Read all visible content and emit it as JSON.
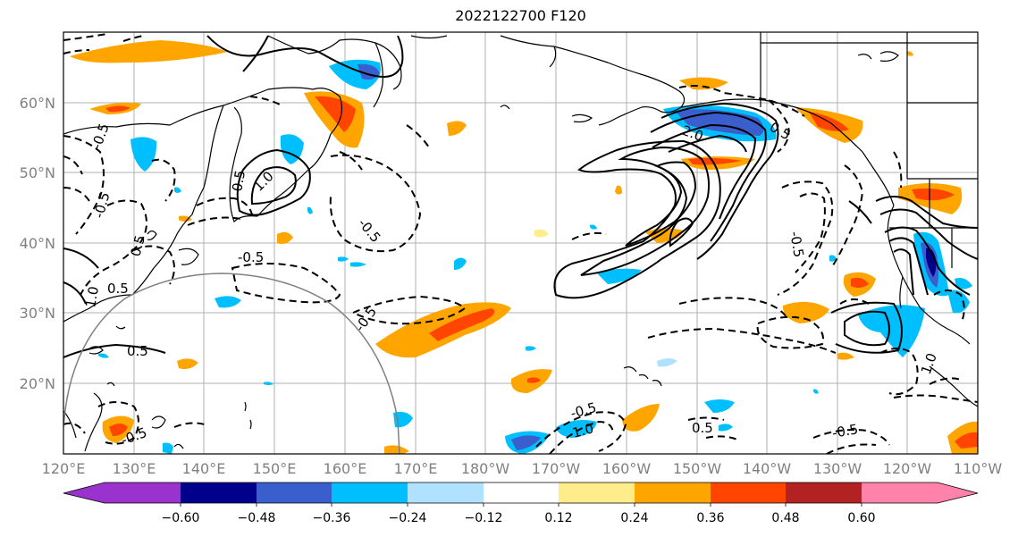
{
  "title": "2022122700 F120",
  "lat_labels": [
    "60°N",
    "50°N",
    "40°N",
    "30°N",
    "20°N"
  ],
  "lon_labels": [
    "120°E",
    "130°E",
    "140°E",
    "150°E",
    "160°E",
    "170°E",
    "180°W",
    "170°W",
    "160°W",
    "150°W",
    "140°W",
    "130°W",
    "120°W",
    "110°W"
  ],
  "colorbar": {
    "colors": [
      "#9a32cd",
      "#00008b",
      "#3a5fcd",
      "#00bfff",
      "#b0e2ff",
      "#ffffff",
      "#ffec8b",
      "#ffa500",
      "#ff4500",
      "#b22222",
      "#ff82ab"
    ],
    "tick_labels": [
      "−0.60",
      "−0.48",
      "−0.36",
      "−0.24",
      "−0.12",
      "0.12",
      "0.24",
      "0.36",
      "0.48",
      "0.60"
    ]
  },
  "contour_labels": {
    "l1": "-0.5",
    "l2": "1.0",
    "l3": "0.5",
    "l4": "-0.5",
    "l5": "-0.5",
    "l6": "0.5",
    "l7": "-0.5",
    "l8": "0.5",
    "l9": "1.0",
    "l10": "2.0",
    "l11": "0.5",
    "l12": "-0.5",
    "l13": "-0.5",
    "l14": "0.5",
    "l15": "-0.5",
    "l16": "1.0",
    "l17": "0.5",
    "l18": "-0.5",
    "l19": "1.0",
    "l20": "-0.5"
  }
}
